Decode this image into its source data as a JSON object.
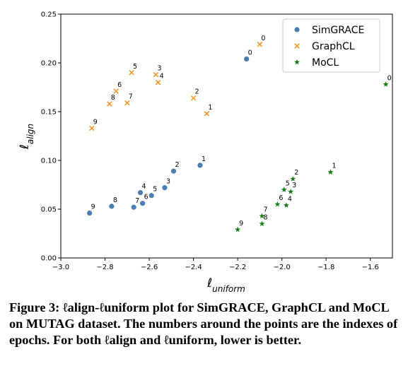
{
  "chart_data": {
    "type": "scatter",
    "title": "",
    "xlabel": "ℓuniform",
    "ylabel": "ℓalign",
    "xlim": [
      -3.0,
      -1.5
    ],
    "ylim": [
      0.0,
      0.25
    ],
    "x_ticks": [
      -3.0,
      -2.8,
      -2.6,
      -2.4,
      -2.2,
      -2.0,
      -1.8,
      -1.6
    ],
    "x_tick_labels": [
      "−3.0",
      "−2.8",
      "−2.6",
      "−2.4",
      "−2.2",
      "−2.0",
      "−1.8",
      "−1.6"
    ],
    "y_ticks": [
      0.0,
      0.05,
      0.1,
      0.15,
      0.2,
      0.25
    ],
    "y_tick_labels": [
      "0.00",
      "0.05",
      "0.10",
      "0.15",
      "0.20",
      "0.25"
    ],
    "grid": false,
    "legend_position": "top-right",
    "series": [
      {
        "name": "SimGRACE",
        "marker": "circle",
        "color": "#4a7eb3",
        "points": [
          {
            "label": "0",
            "x": -2.16,
            "y": 0.204
          },
          {
            "label": "1",
            "x": -2.37,
            "y": 0.095
          },
          {
            "label": "2",
            "x": -2.49,
            "y": 0.089
          },
          {
            "label": "3",
            "x": -2.53,
            "y": 0.072
          },
          {
            "label": "4",
            "x": -2.64,
            "y": 0.067
          },
          {
            "label": "5",
            "x": -2.59,
            "y": 0.064
          },
          {
            "label": "6",
            "x": -2.63,
            "y": 0.056
          },
          {
            "label": "7",
            "x": -2.67,
            "y": 0.052
          },
          {
            "label": "8",
            "x": -2.77,
            "y": 0.053
          },
          {
            "label": "9",
            "x": -2.87,
            "y": 0.046
          }
        ]
      },
      {
        "name": "GraphCL",
        "marker": "x",
        "color": "#f5921e",
        "points": [
          {
            "label": "0",
            "x": -2.1,
            "y": 0.219
          },
          {
            "label": "1",
            "x": -2.34,
            "y": 0.148
          },
          {
            "label": "2",
            "x": -2.4,
            "y": 0.164
          },
          {
            "label": "3",
            "x": -2.57,
            "y": 0.188
          },
          {
            "label": "4",
            "x": -2.56,
            "y": 0.18
          },
          {
            "label": "5",
            "x": -2.68,
            "y": 0.19
          },
          {
            "label": "6",
            "x": -2.75,
            "y": 0.171
          },
          {
            "label": "7",
            "x": -2.7,
            "y": 0.159
          },
          {
            "label": "8",
            "x": -2.78,
            "y": 0.158
          },
          {
            "label": "9",
            "x": -2.86,
            "y": 0.133
          }
        ]
      },
      {
        "name": "MoCL",
        "marker": "star",
        "color": "#1a7d1a",
        "points": [
          {
            "label": "0",
            "x": -1.53,
            "y": 0.178
          },
          {
            "label": "1",
            "x": -1.78,
            "y": 0.088
          },
          {
            "label": "2",
            "x": -1.95,
            "y": 0.081
          },
          {
            "label": "3",
            "x": -1.96,
            "y": 0.068
          },
          {
            "label": "4",
            "x": -1.98,
            "y": 0.054
          },
          {
            "label": "5",
            "x": -1.99,
            "y": 0.07
          },
          {
            "label": "6",
            "x": -2.02,
            "y": 0.055
          },
          {
            "label": "7",
            "x": -2.09,
            "y": 0.043
          },
          {
            "label": "8",
            "x": -2.09,
            "y": 0.035
          },
          {
            "label": "9",
            "x": -2.2,
            "y": 0.029
          }
        ]
      }
    ]
  },
  "caption": "Figure 3: ℓalign-ℓuniform plot for SimGRACE, GraphCL and MoCL on MUTAG dataset. The numbers around the points are the indexes of epochs. For both ℓalign and ℓuniform, lower is better."
}
